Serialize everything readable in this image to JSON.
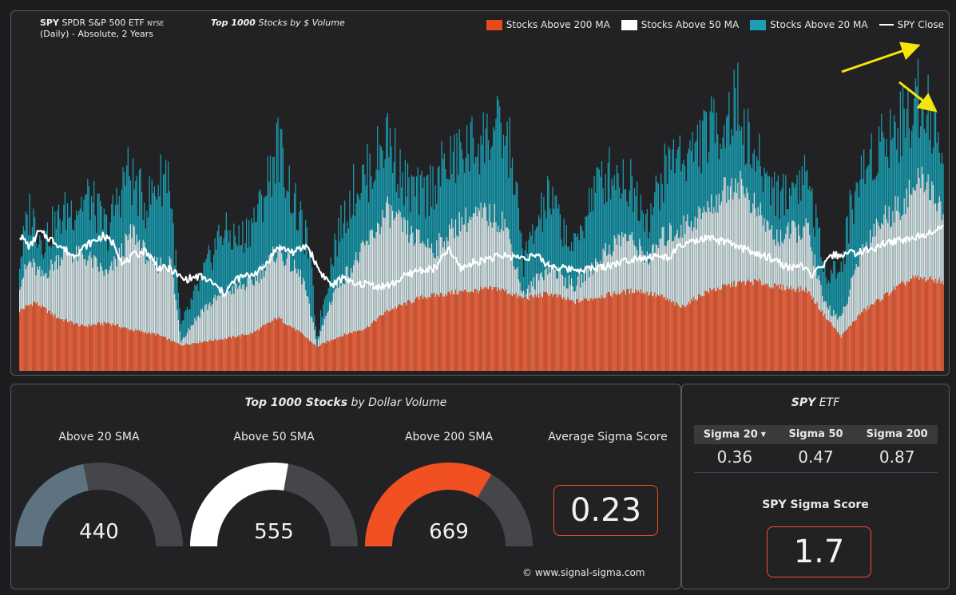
{
  "header": {
    "ticker": "SPY",
    "name": "SPDR S&P 500 ETF",
    "exchange": "NYSE",
    "subtitle": "(Daily) - Absolute, 2 Years",
    "universe_bold": "Top 1000",
    "universe_rest": "Stocks by $ Volume"
  },
  "legend": {
    "above200": "Stocks Above 200 MA",
    "above50": "Stocks Above 50 MA",
    "above20": "Stocks Above 20 MA",
    "close": "SPY Close"
  },
  "colors": {
    "above200": "#e8491d",
    "above50": "#e6e6e6",
    "above20": "#1a9fb3",
    "close": "#ffffff",
    "arrow": "#f5e50a",
    "gauge_track": "#45464a",
    "gauge20": "#5e7280",
    "gauge50": "#ffffff",
    "gauge200": "#f05022"
  },
  "chart_data": {
    "type": "bar",
    "stacked": true,
    "period": "2 Years, Daily",
    "ylim": [
      0,
      1000
    ],
    "grid": false,
    "legend_position": "top-right",
    "series": [
      {
        "name": "Stocks Above 200 MA",
        "keypoints": [
          [
            0,
            175
          ],
          [
            12,
            200
          ],
          [
            30,
            155
          ],
          [
            50,
            130
          ],
          [
            70,
            140
          ],
          [
            88,
            120
          ],
          [
            110,
            105
          ],
          [
            128,
            75
          ],
          [
            145,
            85
          ],
          [
            165,
            95
          ],
          [
            185,
            110
          ],
          [
            205,
            155
          ],
          [
            225,
            105
          ],
          [
            236,
            70
          ],
          [
            250,
            95
          ],
          [
            262,
            110
          ],
          [
            275,
            125
          ],
          [
            292,
            175
          ],
          [
            320,
            215
          ],
          [
            350,
            230
          ],
          [
            380,
            240
          ],
          [
            400,
            210
          ],
          [
            420,
            225
          ],
          [
            440,
            200
          ],
          [
            465,
            220
          ],
          [
            490,
            235
          ],
          [
            510,
            215
          ],
          [
            525,
            185
          ],
          [
            545,
            230
          ],
          [
            570,
            255
          ],
          [
            585,
            260
          ],
          [
            600,
            245
          ],
          [
            625,
            235
          ],
          [
            638,
            165
          ],
          [
            652,
            100
          ],
          [
            668,
            170
          ],
          [
            695,
            240
          ],
          [
            710,
            270
          ],
          [
            725,
            265
          ],
          [
            733,
            260
          ]
        ]
      },
      {
        "name": "Stocks Above 50 MA",
        "keypoints": [
          [
            0,
            260
          ],
          [
            8,
            320
          ],
          [
            18,
            275
          ],
          [
            35,
            350
          ],
          [
            55,
            330
          ],
          [
            70,
            280
          ],
          [
            90,
            410
          ],
          [
            105,
            310
          ],
          [
            120,
            320
          ],
          [
            128,
            90
          ],
          [
            145,
            180
          ],
          [
            165,
            235
          ],
          [
            185,
            260
          ],
          [
            205,
            355
          ],
          [
            225,
            270
          ],
          [
            236,
            80
          ],
          [
            250,
            240
          ],
          [
            270,
            340
          ],
          [
            292,
            470
          ],
          [
            310,
            400
          ],
          [
            330,
            360
          ],
          [
            350,
            440
          ],
          [
            370,
            460
          ],
          [
            385,
            440
          ],
          [
            400,
            220
          ],
          [
            420,
            310
          ],
          [
            440,
            245
          ],
          [
            465,
            350
          ],
          [
            480,
            400
          ],
          [
            500,
            330
          ],
          [
            510,
            390
          ],
          [
            525,
            420
          ],
          [
            545,
            470
          ],
          [
            560,
            530
          ],
          [
            570,
            560
          ],
          [
            585,
            470
          ],
          [
            600,
            390
          ],
          [
            625,
            420
          ],
          [
            638,
            200
          ],
          [
            652,
            150
          ],
          [
            668,
            350
          ],
          [
            680,
            430
          ],
          [
            700,
            490
          ],
          [
            718,
            570
          ],
          [
            725,
            520
          ],
          [
            733,
            470
          ]
        ]
      },
      {
        "name": "Stocks Above 20 MA",
        "keypoints": [
          [
            0,
            330
          ],
          [
            8,
            480
          ],
          [
            18,
            390
          ],
          [
            35,
            470
          ],
          [
            55,
            520
          ],
          [
            70,
            420
          ],
          [
            85,
            600
          ],
          [
            100,
            500
          ],
          [
            118,
            610
          ],
          [
            128,
            130
          ],
          [
            145,
            280
          ],
          [
            160,
            420
          ],
          [
            175,
            390
          ],
          [
            190,
            480
          ],
          [
            205,
            680
          ],
          [
            218,
            500
          ],
          [
            230,
            360
          ],
          [
            236,
            100
          ],
          [
            250,
            380
          ],
          [
            265,
            540
          ],
          [
            280,
            610
          ],
          [
            292,
            710
          ],
          [
            305,
            560
          ],
          [
            320,
            520
          ],
          [
            335,
            600
          ],
          [
            350,
            650
          ],
          [
            365,
            690
          ],
          [
            380,
            720
          ],
          [
            390,
            660
          ],
          [
            400,
            330
          ],
          [
            412,
            450
          ],
          [
            420,
            520
          ],
          [
            440,
            360
          ],
          [
            455,
            540
          ],
          [
            470,
            600
          ],
          [
            485,
            560
          ],
          [
            500,
            460
          ],
          [
            510,
            580
          ],
          [
            520,
            660
          ],
          [
            530,
            640
          ],
          [
            545,
            710
          ],
          [
            560,
            750
          ],
          [
            570,
            810
          ],
          [
            580,
            660
          ],
          [
            590,
            600
          ],
          [
            605,
            520
          ],
          [
            615,
            560
          ],
          [
            625,
            600
          ],
          [
            638,
            310
          ],
          [
            652,
            300
          ],
          [
            660,
            500
          ],
          [
            672,
            620
          ],
          [
            685,
            700
          ],
          [
            700,
            740
          ],
          [
            712,
            820
          ],
          [
            720,
            830
          ],
          [
            725,
            720
          ],
          [
            733,
            650
          ]
        ]
      }
    ],
    "spy_close": {
      "name": "SPY Close",
      "keypoints": [
        [
          0,
          395
        ],
        [
          8,
          360
        ],
        [
          15,
          405
        ],
        [
          28,
          375
        ],
        [
          42,
          335
        ],
        [
          55,
          370
        ],
        [
          66,
          392
        ],
        [
          75,
          370
        ],
        [
          82,
          310
        ],
        [
          90,
          335
        ],
        [
          100,
          350
        ],
        [
          110,
          300
        ],
        [
          120,
          295
        ],
        [
          130,
          265
        ],
        [
          143,
          275
        ],
        [
          152,
          258
        ],
        [
          162,
          225
        ],
        [
          172,
          268
        ],
        [
          182,
          278
        ],
        [
          192,
          295
        ],
        [
          205,
          360
        ],
        [
          218,
          345
        ],
        [
          228,
          365
        ],
        [
          238,
          290
        ],
        [
          248,
          248
        ],
        [
          258,
          275
        ],
        [
          265,
          248
        ],
        [
          275,
          255
        ],
        [
          285,
          245
        ],
        [
          295,
          250
        ],
        [
          303,
          270
        ],
        [
          315,
          292
        ],
        [
          330,
          298
        ],
        [
          340,
          355
        ],
        [
          350,
          298
        ],
        [
          360,
          315
        ],
        [
          372,
          328
        ],
        [
          385,
          335
        ],
        [
          398,
          330
        ],
        [
          410,
          335
        ],
        [
          418,
          310
        ],
        [
          430,
          298
        ],
        [
          445,
          295
        ],
        [
          460,
          300
        ],
        [
          475,
          315
        ],
        [
          490,
          330
        ],
        [
          505,
          332
        ],
        [
          515,
          330
        ],
        [
          525,
          365
        ],
        [
          535,
          375
        ],
        [
          545,
          385
        ],
        [
          560,
          375
        ],
        [
          570,
          360
        ],
        [
          580,
          350
        ],
        [
          585,
          336
        ],
        [
          595,
          330
        ],
        [
          602,
          318
        ],
        [
          610,
          298
        ],
        [
          618,
          308
        ],
        [
          625,
          290
        ],
        [
          630,
          278
        ],
        [
          637,
          305
        ],
        [
          645,
          335
        ],
        [
          655,
          340
        ],
        [
          665,
          345
        ],
        [
          673,
          350
        ],
        [
          680,
          360
        ],
        [
          688,
          372
        ],
        [
          698,
          380
        ],
        [
          708,
          385
        ],
        [
          716,
          395
        ],
        [
          725,
          410
        ],
        [
          733,
          420
        ]
      ]
    },
    "y_annotation": "none"
  },
  "bottom": {
    "title_bold": "Top 1000 Stocks",
    "title_rest": "by Dollar Volume",
    "gauges": [
      {
        "label": "Above 20 SMA",
        "value": "440",
        "fraction": 0.44
      },
      {
        "label": "Above 50 SMA",
        "value": "555",
        "fraction": 0.555
      },
      {
        "label": "Above 200 SMA",
        "value": "669",
        "fraction": 0.669
      }
    ],
    "avg_label": "Average Sigma Score",
    "avg_value": "0.23",
    "copyright": "© www.signal-sigma.com"
  },
  "spy": {
    "title_bold": "SPY",
    "title_rest": "ETF",
    "headers": [
      "Sigma 20",
      "Sigma 50",
      "Sigma 200"
    ],
    "sort_indicator": "▼",
    "values": [
      "0.36",
      "0.47",
      "0.87"
    ],
    "score_label": "SPY Sigma Score",
    "score_value": "1.7"
  }
}
